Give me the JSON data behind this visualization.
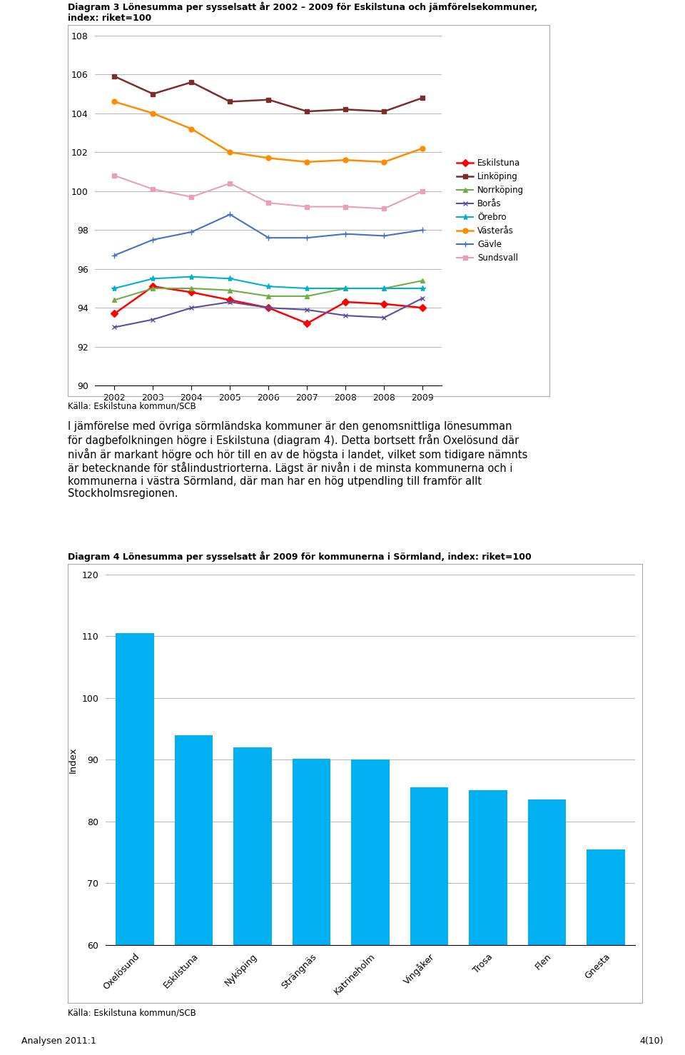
{
  "chart1": {
    "title": "Diagram 3 Lönesumma per sysselsatt år 2002 – 2009 för Eskilstuna och jämförelsekommuner,\nindex: riket=100",
    "xlabel_years": [
      "2002",
      "2003",
      "2004",
      "2005",
      "2006",
      "2007",
      "2008",
      "2008",
      "2009"
    ],
    "ylim": [
      90,
      108
    ],
    "yticks": [
      90,
      92,
      94,
      96,
      98,
      100,
      102,
      104,
      106,
      108
    ],
    "series": {
      "Eskilstuna": {
        "values": [
          93.7,
          95.1,
          94.8,
          94.4,
          94.0,
          93.2,
          94.3,
          94.2,
          94.0
        ],
        "color": "#FF0000",
        "marker": "D",
        "linewidth": 1.8,
        "markersize": 5
      },
      "Linköping": {
        "values": [
          105.9,
          105.0,
          105.6,
          104.6,
          104.7,
          104.1,
          104.2,
          104.1,
          104.8
        ],
        "color": "#7B2C2C",
        "marker": "s",
        "linewidth": 1.8,
        "markersize": 5
      },
      "Norrköping": {
        "values": [
          94.4,
          95.0,
          95.0,
          94.9,
          94.6,
          94.6,
          95.0,
          95.0,
          95.4
        ],
        "color": "#70AD47",
        "marker": "^",
        "linewidth": 1.5,
        "markersize": 5
      },
      "Borås": {
        "values": [
          93.0,
          93.4,
          94.0,
          94.3,
          94.0,
          93.9,
          93.6,
          93.5,
          94.5
        ],
        "color": "#5B4EA0",
        "marker": "x",
        "linewidth": 1.5,
        "markersize": 5
      },
      "Örebro": {
        "values": [
          95.0,
          95.5,
          95.6,
          95.5,
          95.1,
          95.0,
          95.0,
          95.0,
          95.0
        ],
        "color": "#00B0D0",
        "marker": "*",
        "linewidth": 1.5,
        "markersize": 6
      },
      "Västerås": {
        "values": [
          104.6,
          104.0,
          103.2,
          102.0,
          101.7,
          101.5,
          101.6,
          101.5,
          102.2
        ],
        "color": "#FF8C00",
        "marker": "o",
        "linewidth": 1.8,
        "markersize": 5
      },
      "Gävle": {
        "values": [
          96.7,
          97.5,
          97.9,
          98.8,
          97.6,
          97.6,
          97.8,
          97.7,
          98.0
        ],
        "color": "#4472C4",
        "marker": "+",
        "linewidth": 1.5,
        "markersize": 6
      },
      "Sundsvall": {
        "values": [
          100.8,
          100.1,
          99.7,
          100.4,
          99.4,
          99.2,
          99.2,
          99.1,
          100.0
        ],
        "color": "#E8A0B8",
        "marker": "s",
        "linewidth": 1.5,
        "markersize": 5
      }
    },
    "legend_order": [
      "Eskilstuna",
      "Linköping",
      "Norrköping",
      "Borås",
      "Örebro",
      "Västerås",
      "Gävle",
      "Sundsvall"
    ],
    "source": "Källa: Eskilstuna kommun/SCB"
  },
  "body_text": "I jämförelse med övriga sörmländska kommuner är den genomsnittliga lönesumman\nför dagbefolkningen högre i Eskilstuna (diagram 4). Detta bortsett från Oxelösund där\nnivån är markant högre och hör till en av de högsta i landet, vilket som tidigare nämnts\när betecknande för stålindustriorterna. Lägst är nivån i de minsta kommunerna och i\nkommunerna i västra Sörmland, där man har en hög utpendling till framför allt\nStockholmsregionen.",
  "chart2": {
    "title": "Diagram 4 Lönesumma per sysselsatt år 2009 för kommunerna i Sörmland, index: riket=100",
    "categories": [
      "Oxelösund",
      "Eskilstuna",
      "Nyköping",
      "Strängnäs",
      "Katrineholm",
      "Vingåker",
      "Trosa",
      "Flen",
      "Gnesta"
    ],
    "values": [
      110.5,
      94.0,
      92.0,
      90.2,
      90.0,
      85.5,
      85.0,
      83.5,
      75.5
    ],
    "bar_color": "#00B0F0",
    "ylim": [
      60,
      120
    ],
    "yticks": [
      60,
      70,
      80,
      90,
      100,
      110,
      120
    ],
    "ylabel": "Index",
    "source": "Källa: Eskilstuna kommun/SCB"
  },
  "footer_left": "Analysen 2011:1",
  "footer_right": "4(10)",
  "background_color": "#FFFFFF"
}
